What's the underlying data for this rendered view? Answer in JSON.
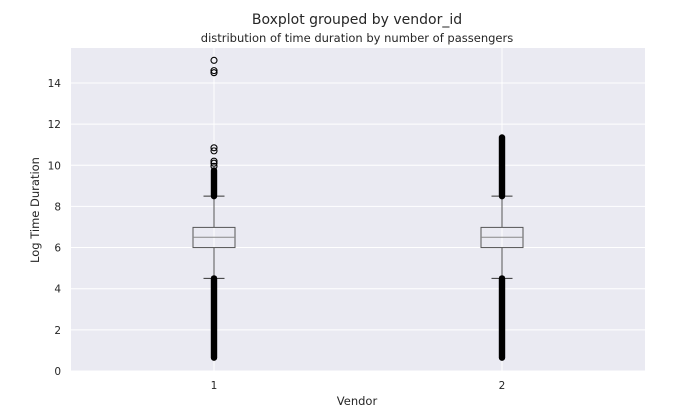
{
  "chart_data": {
    "type": "boxplot",
    "title": "Boxplot grouped by vendor_id",
    "subtitle": "distribution of time duration by number of passengers",
    "xlabel": "Vendor",
    "ylabel": "Log Time Duration",
    "categories": [
      "1",
      "2"
    ],
    "ylim": [
      0,
      15.7
    ],
    "yticks": [
      0,
      2,
      4,
      6,
      8,
      10,
      12,
      14
    ],
    "grid": true,
    "colors": {
      "plot_background": "#eaeaf2",
      "grid": "#ffffff",
      "box": "#555555",
      "median": "#888888",
      "flier": "#000000"
    },
    "boxes": [
      {
        "category": "1",
        "whisker_low": 4.5,
        "q1": 6.0,
        "median": 6.5,
        "q3": 6.98,
        "whisker_high": 8.5,
        "flier_bands": [
          [
            0.65,
            4.5
          ],
          [
            8.5,
            9.75
          ]
        ],
        "fliers": [
          9.95,
          10.1,
          10.2,
          10.7,
          10.85,
          14.5,
          14.6,
          15.1
        ]
      },
      {
        "category": "2",
        "whisker_low": 4.5,
        "q1": 6.0,
        "median": 6.5,
        "q3": 6.98,
        "whisker_high": 8.5,
        "flier_bands": [
          [
            0.65,
            4.5
          ],
          [
            8.5,
            11.35
          ]
        ],
        "fliers": []
      }
    ]
  }
}
